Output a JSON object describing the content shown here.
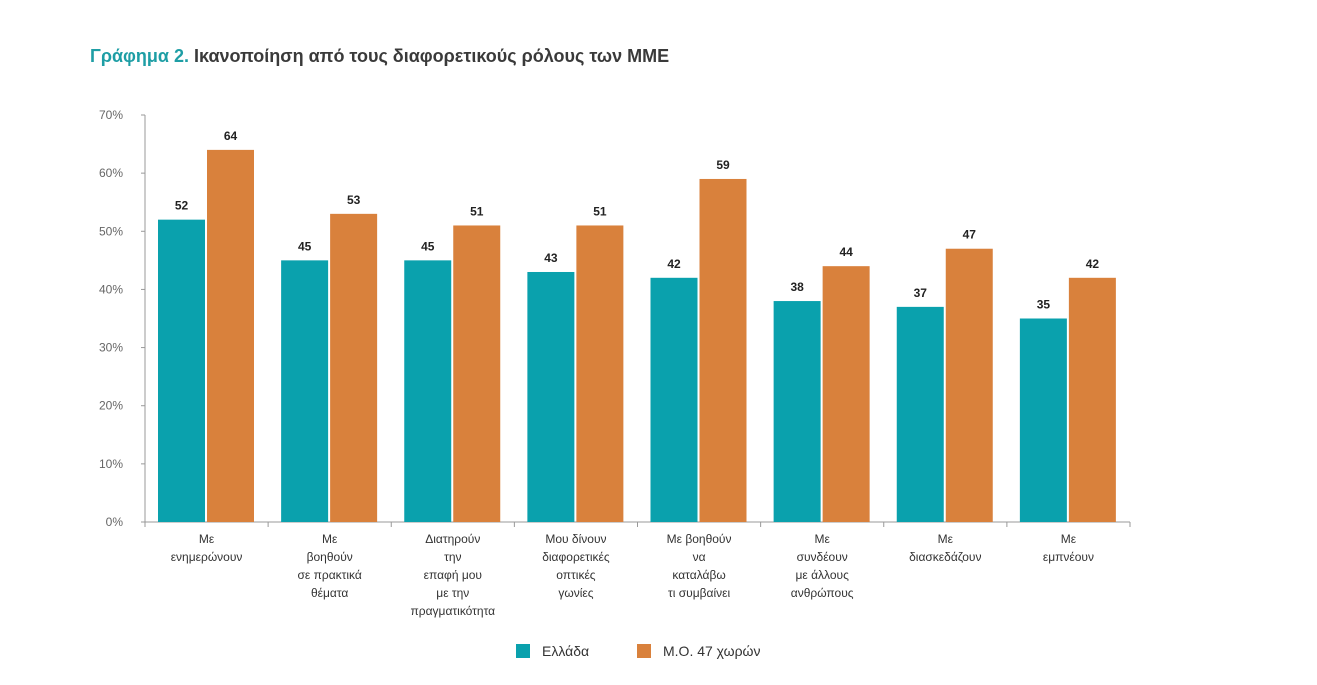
{
  "title": {
    "prefix": "Γράφημα 2.",
    "text": "Ικανοποίηση από τους διαφορετικούς ρόλους των ΜΜΕ"
  },
  "colors": {
    "series_1": "#0aa1ad",
    "series_2": "#d9813c",
    "axis": "#999999",
    "title_accent": "#1e9ea5"
  },
  "chart_data": {
    "type": "bar",
    "title": "Ικανοποίηση από τους διαφορετικούς ρόλους των ΜΜΕ",
    "xlabel": "",
    "ylabel": "",
    "ylim": [
      0,
      70
    ],
    "yticks": [
      0,
      10,
      20,
      30,
      40,
      50,
      60,
      70
    ],
    "ytick_labels": [
      "0%",
      "10%",
      "20%",
      "30%",
      "40%",
      "50%",
      "60%",
      "70%"
    ],
    "grid": false,
    "legend_position": "bottom-center",
    "categories": [
      [
        "Με",
        "ενημερώνουν"
      ],
      [
        "Με",
        "βοηθούν",
        "σε πρακτικά",
        "θέματα"
      ],
      [
        "Διατηρούν",
        "την",
        "επαφή μου",
        "με την",
        "πραγματικότητα"
      ],
      [
        "Μου δίνουν",
        "διαφορετικές",
        "οπτικές",
        "γωνίες"
      ],
      [
        "Με βοηθούν",
        "να",
        "καταλάβω",
        "τι συμβαίνει"
      ],
      [
        "Με",
        "συνδέουν",
        "με άλλους",
        "ανθρώπους"
      ],
      [
        "Με",
        "διασκεδάζουν"
      ],
      [
        "Με",
        "εμπνέουν"
      ]
    ],
    "series": [
      {
        "name": "Ελλάδα",
        "color": "#0aa1ad",
        "values": [
          52,
          45,
          45,
          43,
          42,
          38,
          37,
          35
        ]
      },
      {
        "name": "Μ.Ο. 47 χωρών",
        "color": "#d9813c",
        "values": [
          64,
          53,
          51,
          51,
          59,
          44,
          47,
          42
        ]
      }
    ]
  }
}
